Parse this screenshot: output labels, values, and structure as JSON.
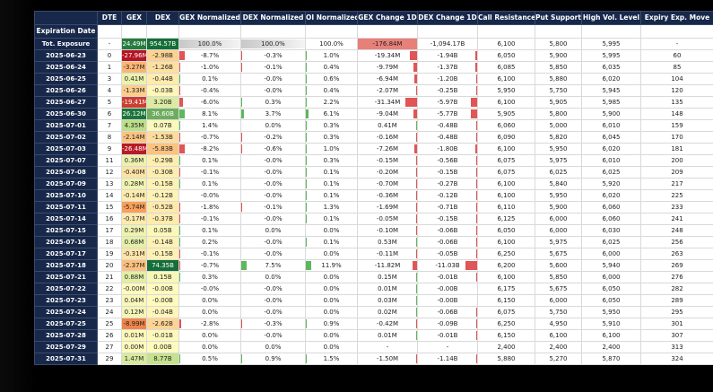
{
  "table": {
    "index_name": "Expiration Date",
    "columns": [
      "DTE",
      "GEX",
      "DEX",
      "GEX Normalized",
      "DEX Normalized",
      "OI Normalized",
      "GEX Change 1D",
      "DEX Change 1D",
      "Call Resistance",
      "Put Support",
      "High Vol. Level",
      "Expiry Exp. Move"
    ],
    "rows": [
      {
        "index": "Tot. Exposure",
        "cells": [
          "-",
          "24.49M",
          "954.57B",
          "100.0%",
          "100.0%",
          "100.0%",
          "-176.84M",
          "-1,094.17B",
          "6,100",
          "5,800",
          "5,995",
          "-"
        ]
      },
      {
        "index": "2025-06-23",
        "cells": [
          "0",
          "-27.96M",
          "-2.98B",
          "-8.7%",
          "-0.3%",
          "1.0%",
          "-19.34M",
          "-1.94B",
          "6,050",
          "5,900",
          "5,995",
          "60"
        ]
      },
      {
        "index": "2025-06-24",
        "cells": [
          "1",
          "-3.27M",
          "-1.26B",
          "-1.0%",
          "-0.1%",
          "0.4%",
          "-9.79M",
          "-1.37B",
          "6,085",
          "5,850",
          "6,035",
          "85"
        ]
      },
      {
        "index": "2025-06-25",
        "cells": [
          "3",
          "0.41M",
          "-0.44B",
          "0.1%",
          "-0.0%",
          "0.6%",
          "-6.94M",
          "-1.20B",
          "6,100",
          "5,880",
          "6,020",
          "104"
        ]
      },
      {
        "index": "2025-06-26",
        "cells": [
          "4",
          "-1.33M",
          "-0.03B",
          "-0.4%",
          "-0.0%",
          "0.4%",
          "-2.07M",
          "-0.25B",
          "5,950",
          "5,750",
          "5,945",
          "120"
        ]
      },
      {
        "index": "2025-06-27",
        "cells": [
          "5",
          "-19.41M",
          "3.20B",
          "-6.0%",
          "0.3%",
          "2.2%",
          "-31.34M",
          "-5.97B",
          "6,100",
          "5,905",
          "5,985",
          "135"
        ]
      },
      {
        "index": "2025-06-30",
        "cells": [
          "6",
          "26.12M",
          "36.60B",
          "8.1%",
          "3.7%",
          "6.1%",
          "-9.04M",
          "-5.77B",
          "5,905",
          "5,800",
          "5,900",
          "148"
        ]
      },
      {
        "index": "2025-07-01",
        "cells": [
          "7",
          "4.35M",
          "0.07B",
          "1.4%",
          "0.0%",
          "0.3%",
          "0.41M",
          "-0.48B",
          "6,060",
          "5,000",
          "6,010",
          "159"
        ]
      },
      {
        "index": "2025-07-02",
        "cells": [
          "8",
          "-2.14M",
          "-1.53B",
          "-0.7%",
          "-0.2%",
          "0.3%",
          "-0.16M",
          "-0.48B",
          "6,090",
          "5,820",
          "6,045",
          "170"
        ]
      },
      {
        "index": "2025-07-03",
        "cells": [
          "9",
          "-26.48M",
          "-5.83B",
          "-8.2%",
          "-0.6%",
          "1.0%",
          "-7.26M",
          "-1.80B",
          "6,100",
          "5,950",
          "6,020",
          "181"
        ]
      },
      {
        "index": "2025-07-07",
        "cells": [
          "11",
          "0.36M",
          "-0.29B",
          "0.1%",
          "-0.0%",
          "0.3%",
          "-0.15M",
          "-0.56B",
          "6,075",
          "5,975",
          "6,010",
          "200"
        ]
      },
      {
        "index": "2025-07-08",
        "cells": [
          "12",
          "-0.40M",
          "-0.30B",
          "-0.1%",
          "-0.0%",
          "0.1%",
          "-0.20M",
          "-0.15B",
          "6,075",
          "6,025",
          "6,025",
          "209"
        ]
      },
      {
        "index": "2025-07-09",
        "cells": [
          "13",
          "0.28M",
          "-0.15B",
          "0.1%",
          "-0.0%",
          "0.1%",
          "-0.70M",
          "-0.27B",
          "6,100",
          "5,840",
          "5,920",
          "217"
        ]
      },
      {
        "index": "2025-07-10",
        "cells": [
          "14",
          "-0.14M",
          "-0.12B",
          "-0.0%",
          "-0.0%",
          "0.1%",
          "-0.36M",
          "-0.12B",
          "6,100",
          "5,950",
          "6,020",
          "225"
        ]
      },
      {
        "index": "2025-07-11",
        "cells": [
          "15",
          "-5.74M",
          "-0.52B",
          "-1.8%",
          "-0.1%",
          "1.3%",
          "-1.69M",
          "-0.71B",
          "6,110",
          "5,900",
          "6,060",
          "233"
        ]
      },
      {
        "index": "2025-07-14",
        "cells": [
          "16",
          "-0.17M",
          "-0.37B",
          "-0.1%",
          "-0.0%",
          "0.1%",
          "-0.05M",
          "-0.15B",
          "6,125",
          "6,000",
          "6,060",
          "241"
        ]
      },
      {
        "index": "2025-07-15",
        "cells": [
          "17",
          "0.29M",
          "0.05B",
          "0.1%",
          "0.0%",
          "0.0%",
          "-0.10M",
          "-0.06B",
          "6,050",
          "6,000",
          "6,030",
          "248"
        ]
      },
      {
        "index": "2025-07-16",
        "cells": [
          "18",
          "0.68M",
          "-0.14B",
          "0.2%",
          "-0.0%",
          "0.1%",
          "0.53M",
          "-0.06B",
          "6,100",
          "5,975",
          "6,025",
          "256"
        ]
      },
      {
        "index": "2025-07-17",
        "cells": [
          "19",
          "-0.31M",
          "-0.15B",
          "-0.1%",
          "-0.0%",
          "0.0%",
          "-0.11M",
          "-0.05B",
          "6,250",
          "5,675",
          "6,000",
          "263"
        ]
      },
      {
        "index": "2025-07-18",
        "cells": [
          "20",
          "-2.37M",
          "74.35B",
          "-0.7%",
          "7.5%",
          "11.9%",
          "-11.82M",
          "-11.03B",
          "6,200",
          "5,600",
          "5,940",
          "269"
        ]
      },
      {
        "index": "2025-07-21",
        "cells": [
          "21",
          "0.88M",
          "0.15B",
          "0.3%",
          "0.0%",
          "0.0%",
          "0.15M",
          "-0.01B",
          "6,100",
          "5,850",
          "6,000",
          "276"
        ]
      },
      {
        "index": "2025-07-22",
        "cells": [
          "22",
          "-0.00M",
          "-0.00B",
          "-0.0%",
          "-0.0%",
          "0.0%",
          "0.01M",
          "-0.00B",
          "6,175",
          "5,675",
          "6,050",
          "282"
        ]
      },
      {
        "index": "2025-07-23",
        "cells": [
          "23",
          "0.04M",
          "-0.00B",
          "0.0%",
          "-0.0%",
          "0.0%",
          "0.03M",
          "-0.00B",
          "6,150",
          "6,000",
          "6,050",
          "289"
        ]
      },
      {
        "index": "2025-07-24",
        "cells": [
          "24",
          "0.12M",
          "-0.04B",
          "0.0%",
          "-0.0%",
          "0.0%",
          "0.02M",
          "-0.06B",
          "6,075",
          "5,750",
          "5,950",
          "295"
        ]
      },
      {
        "index": "2025-07-25",
        "cells": [
          "25",
          "-8.99M",
          "-2.62B",
          "-2.8%",
          "-0.3%",
          "0.9%",
          "-0.42M",
          "-0.09B",
          "6,250",
          "4,950",
          "5,910",
          "301"
        ]
      },
      {
        "index": "2025-07-28",
        "cells": [
          "26",
          "0.01M",
          "-0.01B",
          "0.0%",
          "-0.0%",
          "0.0%",
          "0.01M",
          "-0.01B",
          "6,150",
          "6,100",
          "6,100",
          "307"
        ]
      },
      {
        "index": "2025-07-29",
        "cells": [
          "27",
          "0.00M",
          "0.00B",
          "0.0%",
          "0.0%",
          "0.0%",
          "-",
          "-",
          "2,400",
          "2,400",
          "2,400",
          "313"
        ]
      },
      {
        "index": "2025-07-31",
        "cells": [
          "29",
          "1.47M",
          "8.77B",
          "0.5%",
          "0.9%",
          "1.5%",
          "-1.50M",
          "-1.14B",
          "5,880",
          "5,270",
          "5,870",
          "324"
        ]
      }
    ]
  }
}
